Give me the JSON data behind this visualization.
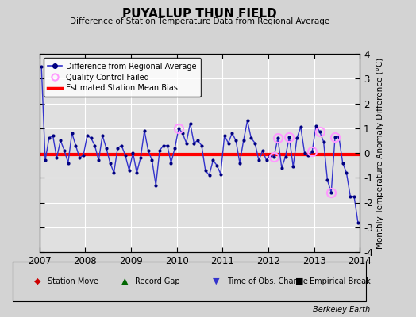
{
  "title": "PUYALLUP THUN FIELD",
  "subtitle": "Difference of Station Temperature Data from Regional Average",
  "ylabel_right": "Monthly Temperature Anomaly Difference (°C)",
  "credit": "Berkeley Earth",
  "xlim": [
    2007.0,
    2014.0
  ],
  "ylim": [
    -4,
    4
  ],
  "bias_value": -0.05,
  "background_color": "#d3d3d3",
  "plot_bg_color": "#e0e0e0",
  "grid_color": "#ffffff",
  "xticks": [
    2007,
    2008,
    2009,
    2010,
    2011,
    2012,
    2013,
    2014
  ],
  "yticks": [
    -4,
    -3,
    -2,
    -1,
    0,
    1,
    2,
    3,
    4
  ],
  "time_series": [
    2007.042,
    2007.125,
    2007.208,
    2007.292,
    2007.375,
    2007.458,
    2007.542,
    2007.625,
    2007.708,
    2007.792,
    2007.875,
    2007.958,
    2008.042,
    2008.125,
    2008.208,
    2008.292,
    2008.375,
    2008.458,
    2008.542,
    2008.625,
    2008.708,
    2008.792,
    2008.875,
    2008.958,
    2009.042,
    2009.125,
    2009.208,
    2009.292,
    2009.375,
    2009.458,
    2009.542,
    2009.625,
    2009.708,
    2009.792,
    2009.875,
    2009.958,
    2010.042,
    2010.125,
    2010.208,
    2010.292,
    2010.375,
    2010.458,
    2010.542,
    2010.625,
    2010.708,
    2010.792,
    2010.875,
    2010.958,
    2011.042,
    2011.125,
    2011.208,
    2011.292,
    2011.375,
    2011.458,
    2011.542,
    2011.625,
    2011.708,
    2011.792,
    2011.875,
    2011.958,
    2012.042,
    2012.125,
    2012.208,
    2012.292,
    2012.375,
    2012.458,
    2012.542,
    2012.625,
    2012.708,
    2012.792,
    2012.875,
    2012.958,
    2013.042,
    2013.125,
    2013.208,
    2013.292,
    2013.375,
    2013.458,
    2013.542,
    2013.625,
    2013.708,
    2013.792,
    2013.875,
    2013.958
  ],
  "values": [
    3.5,
    -0.3,
    0.6,
    0.7,
    -0.2,
    0.5,
    0.1,
    -0.4,
    0.8,
    0.3,
    -0.2,
    -0.1,
    0.7,
    0.6,
    0.3,
    -0.3,
    0.7,
    0.2,
    -0.4,
    -0.8,
    0.2,
    0.3,
    -0.1,
    -0.7,
    0.0,
    -0.8,
    -0.2,
    0.9,
    0.1,
    -0.3,
    -1.3,
    0.1,
    0.3,
    0.3,
    -0.4,
    0.2,
    1.0,
    0.8,
    0.4,
    1.2,
    0.4,
    0.5,
    0.3,
    -0.7,
    -0.9,
    -0.3,
    -0.5,
    -0.85,
    0.7,
    0.4,
    0.8,
    0.5,
    -0.4,
    0.5,
    1.3,
    0.6,
    0.4,
    -0.3,
    0.1,
    -0.3,
    -0.1,
    -0.15,
    0.6,
    -0.6,
    -0.15,
    0.65,
    -0.55,
    0.6,
    1.05,
    0.0,
    -0.1,
    0.05,
    1.1,
    0.85,
    0.45,
    -1.1,
    -1.6,
    0.65,
    0.65,
    -0.4,
    -0.8,
    -1.75,
    -1.75,
    -2.8
  ],
  "qc_failed_indices": [
    36,
    61,
    62,
    65,
    71,
    73,
    76,
    77
  ],
  "line_color": "#3333cc",
  "dot_color": "#000080",
  "qc_color": "#ff99ff",
  "bias_color": "#ff0000",
  "legend_line_label": "Difference from Regional Average",
  "legend_qc_label": "Quality Control Failed",
  "legend_bias_label": "Estimated Station Mean Bias",
  "bottom_legend": [
    {
      "label": "Station Move",
      "color": "#cc0000",
      "marker": "D"
    },
    {
      "label": "Record Gap",
      "color": "#006600",
      "marker": "^"
    },
    {
      "label": "Time of Obs. Change",
      "color": "#3333cc",
      "marker": "v"
    },
    {
      "label": "Empirical Break",
      "color": "#000000",
      "marker": "s"
    }
  ]
}
